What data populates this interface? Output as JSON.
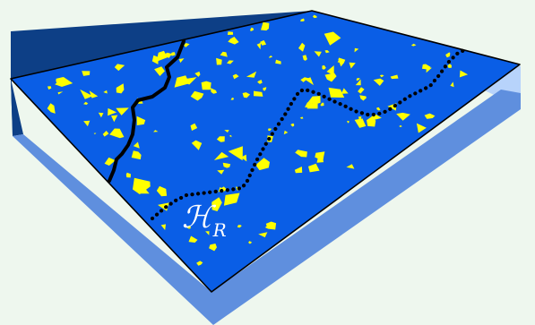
{
  "label": {
    "symbol": "ℋ",
    "subscript": "R"
  },
  "colors": {
    "background": "#eef7ee",
    "surface": "#0a5ee6",
    "left_wall": "#0d3f86",
    "right_wall": "#b7d3fb",
    "shadow": "#5f8fde",
    "patches": "#ffff00",
    "curves": "#000000",
    "label": "#ffffff"
  }
}
